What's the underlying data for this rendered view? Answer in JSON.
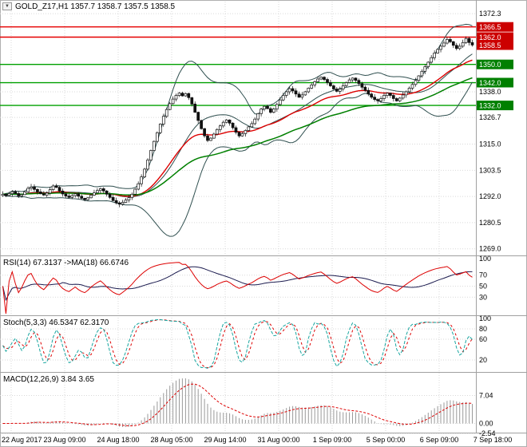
{
  "header": {
    "dropdown_glyph": "▼",
    "main": "GOLD_Z17,H1 1357.7 1358.7 1357.5 1358.5",
    "rsi": "RSI(14) 67.3137 ->MA(18) 66.6746",
    "stoch": "Stoch(5,3,3) 46.5347 62.3170",
    "macd": "MACD(12,26,9) 3.84 3.65"
  },
  "colors": {
    "resistance": "#e60000",
    "support": "#00a000",
    "badge_red": "#cc0000",
    "badge_green": "#008000",
    "candle": "#111111",
    "bb": "#2f4f4f",
    "ma_fast": "#dd0000",
    "ma_slow": "#008000",
    "rsi_line": "#dd0000",
    "rsi_ma": "#1a1a4e",
    "stoch_k": "#18a6a0",
    "stoch_d": "#dd0000",
    "macd_hist": "#9a9a9a",
    "macd_signal": "#dd0000",
    "grid": "#d9d9d9",
    "separator": "#a0a0a0",
    "axis_text": "#000000"
  },
  "time_axis": [
    "22 Aug 2017",
    "23 Aug 09:00",
    "24 Aug 18:00",
    "28 Aug 05:00",
    "29 Aug 14:00",
    "31 Aug 00:00",
    "1 Sep 09:00",
    "5 Sep 00:00",
    "6 Sep 09:00",
    "7 Sep 18:00"
  ],
  "chart_data": [
    {
      "type": "candlestick",
      "pane": "main",
      "title": "GOLD_Z17,H1",
      "symbol": "GOLD_Z17",
      "timeframe": "H1",
      "ohlc_header": {
        "open": 1357.7,
        "high": 1358.7,
        "low": 1357.5,
        "close": 1358.5
      },
      "ylim": [
        1267.5,
        1374.8
      ],
      "y_axis_labels": [
        "1372.3",
        "1338.0",
        "1326.7",
        "1315.0",
        "1303.5",
        "1292.0",
        "1280.5",
        "1269.0"
      ],
      "resistance_levels": [
        1366.5,
        1362.0
      ],
      "support_levels": [
        1350.0,
        1342.0,
        1332.0
      ],
      "current_price": 1358.5,
      "overlays": {
        "bollinger_period": 20,
        "bollinger_dev": 2,
        "ma_fast_period": 28,
        "ma_slow_period": 60
      },
      "closes": [
        1293.0,
        1292.4,
        1293.2,
        1294.1,
        1293.3,
        1292.2,
        1292.8,
        1294.0,
        1295.6,
        1296.2,
        1295.1,
        1294.0,
        1293.2,
        1292.6,
        1293.5,
        1295.0,
        1296.6,
        1296.0,
        1294.4,
        1293.1,
        1292.2,
        1291.6,
        1292.4,
        1293.2,
        1292.1,
        1291.2,
        1290.6,
        1291.4,
        1292.6,
        1293.6,
        1294.6,
        1295.4,
        1294.4,
        1293.0,
        1291.6,
        1290.2,
        1289.2,
        1288.6,
        1289.4,
        1290.4,
        1291.5,
        1293.0,
        1295.2,
        1297.6,
        1300.6,
        1304.0,
        1308.0,
        1312.2,
        1316.2,
        1320.0,
        1323.8,
        1327.2,
        1330.2,
        1332.8,
        1334.8,
        1336.4,
        1337.4,
        1336.2,
        1337.2,
        1335.4,
        1332.6,
        1329.0,
        1325.4,
        1321.8,
        1318.6,
        1316.6,
        1317.6,
        1319.4,
        1321.4,
        1323.0,
        1324.6,
        1325.6,
        1324.2,
        1322.2,
        1320.2,
        1318.6,
        1319.6,
        1321.0,
        1322.6,
        1324.0,
        1326.0,
        1328.4,
        1330.4,
        1331.6,
        1330.6,
        1329.0,
        1330.4,
        1332.4,
        1334.4,
        1336.4,
        1338.0,
        1339.4,
        1338.4,
        1337.0,
        1335.6,
        1336.6,
        1338.0,
        1339.6,
        1341.0,
        1342.4,
        1343.6,
        1344.4,
        1343.4,
        1342.0,
        1340.6,
        1339.2,
        1338.2,
        1339.2,
        1340.6,
        1342.0,
        1343.2,
        1344.0,
        1343.0,
        1341.6,
        1340.0,
        1338.6,
        1337.0,
        1335.6,
        1334.6,
        1334.0,
        1335.0,
        1336.4,
        1337.4,
        1336.4,
        1335.0,
        1334.0,
        1335.2,
        1336.6,
        1338.0,
        1339.6,
        1341.2,
        1343.0,
        1345.0,
        1347.0,
        1349.0,
        1351.0,
        1353.0,
        1355.0,
        1356.6,
        1358.0,
        1359.4,
        1361.0,
        1360.0,
        1358.4,
        1357.0,
        1358.0,
        1359.6,
        1361.4,
        1359.6,
        1358.5
      ]
    },
    {
      "type": "line",
      "pane": "rsi",
      "name": "RSI(14)",
      "value": 67.3137,
      "ma_name": "MA(18)",
      "ma_value": 66.6746,
      "period": 14,
      "ma_period": 18,
      "ylim": [
        0,
        100
      ],
      "levels": [
        100,
        70,
        50,
        30
      ]
    },
    {
      "type": "line",
      "pane": "stoch",
      "name": "Stoch(5,3,3)",
      "k_value": 46.5347,
      "d_value": 62.317,
      "k_period": 5,
      "slowing": 3,
      "d_period": 3,
      "ylim": [
        0,
        100
      ],
      "levels": [
        100,
        80,
        60,
        20
      ]
    },
    {
      "type": "macd_histogram",
      "pane": "macd",
      "name": "MACD(12,26,9)",
      "macd_value": 3.84,
      "signal_value": 3.65,
      "fast": 12,
      "slow": 26,
      "signal": 9,
      "y_axis_labels": [
        "7.04",
        "0.00",
        "-2.54"
      ]
    }
  ]
}
